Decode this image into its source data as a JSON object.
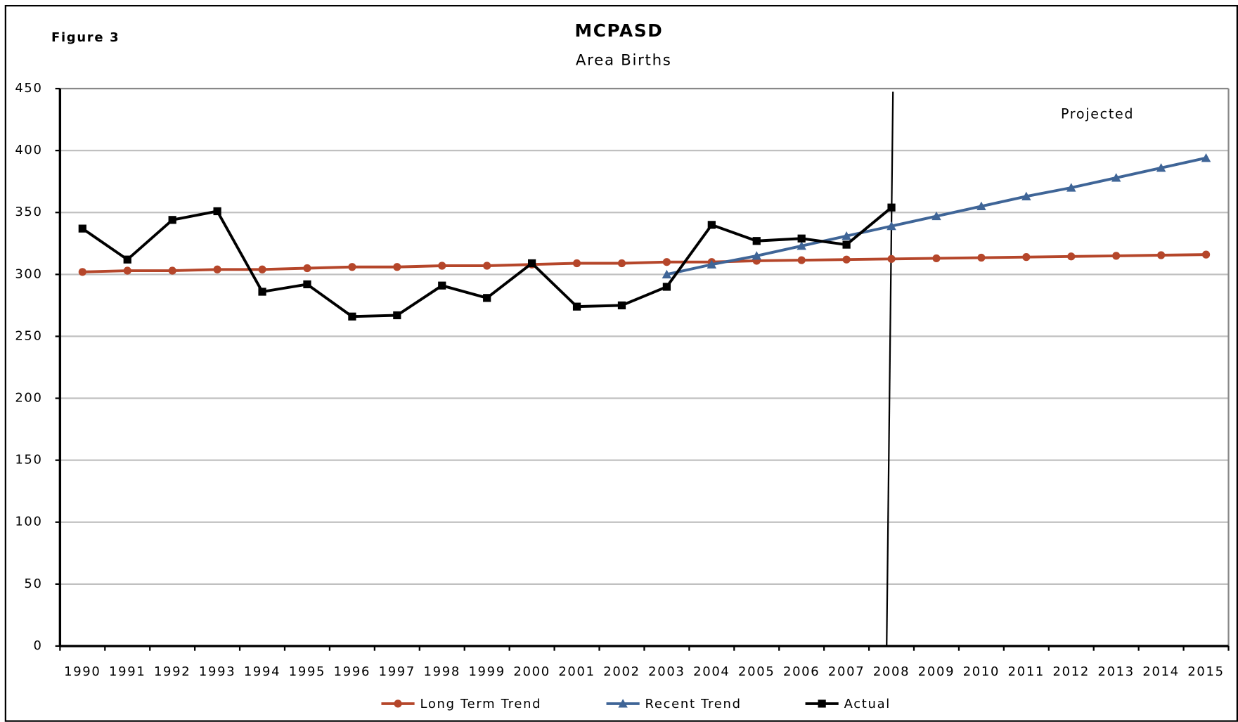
{
  "chart_data": {
    "type": "line",
    "title": "MCPASD",
    "subtitle": "Area Births",
    "figure_label": "Figure 3",
    "annotation": "Projected",
    "categories": [
      "1990",
      "1991",
      "1992",
      "1993",
      "1994",
      "1995",
      "1996",
      "1997",
      "1998",
      "1999",
      "2000",
      "2001",
      "2002",
      "2003",
      "2004",
      "2005",
      "2006",
      "2007",
      "2008",
      "2009",
      "2010",
      "2011",
      "2012",
      "2013",
      "2014",
      "2015"
    ],
    "series": [
      {
        "name": "Long Term Trend",
        "color": "#b5462a",
        "marker": "circle",
        "values": [
          302,
          303,
          303,
          304,
          304,
          305,
          306,
          306,
          307,
          307,
          308,
          309,
          309,
          310,
          310,
          311,
          311.5,
          312,
          312.5,
          313,
          313.5,
          314,
          314.5,
          315,
          315.5,
          316
        ]
      },
      {
        "name": "Recent Trend",
        "color": "#3f6597",
        "marker": "triangle",
        "values": [
          null,
          null,
          null,
          null,
          null,
          null,
          null,
          null,
          null,
          null,
          null,
          null,
          null,
          300,
          308,
          315,
          323,
          331,
          339,
          347,
          355,
          363,
          370,
          378,
          386,
          394
        ]
      },
      {
        "name": "Actual",
        "color": "#000000",
        "marker": "square",
        "values": [
          337,
          312,
          344,
          351,
          286,
          292,
          266,
          267,
          291,
          281,
          309,
          274,
          275,
          290,
          340,
          327,
          329,
          324,
          354,
          null,
          null,
          null,
          null,
          null,
          null,
          null
        ]
      }
    ],
    "ylim": [
      0,
      450
    ],
    "yticks": [
      0,
      50,
      100,
      150,
      200,
      250,
      300,
      350,
      400,
      450
    ],
    "grid": true,
    "legend": "bottom"
  }
}
